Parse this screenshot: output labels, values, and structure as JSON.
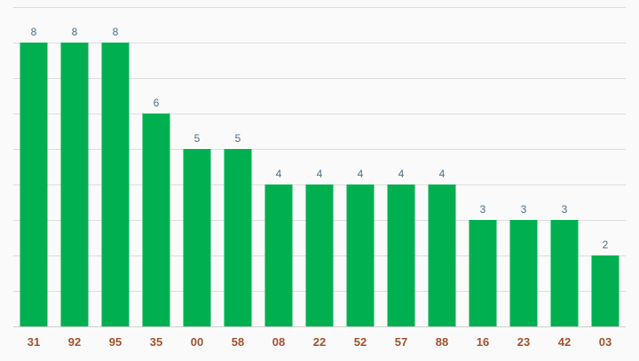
{
  "chart_data": {
    "type": "bar",
    "categories": [
      "31",
      "92",
      "95",
      "35",
      "00",
      "58",
      "08",
      "22",
      "52",
      "57",
      "88",
      "16",
      "23",
      "42",
      "03"
    ],
    "values": [
      8,
      8,
      8,
      6,
      5,
      5,
      4,
      4,
      4,
      4,
      4,
      3,
      3,
      3,
      2
    ],
    "title": "",
    "xlabel": "",
    "ylabel": "",
    "ylim": [
      0,
      9
    ],
    "grid": true,
    "show_data_labels": true,
    "legend": "none"
  },
  "colors": {
    "bar": "#00b050",
    "data_label": "#4a6f8a",
    "tick_label": "#a0522d",
    "grid": "#dddddd",
    "background": "#fafafa"
  }
}
